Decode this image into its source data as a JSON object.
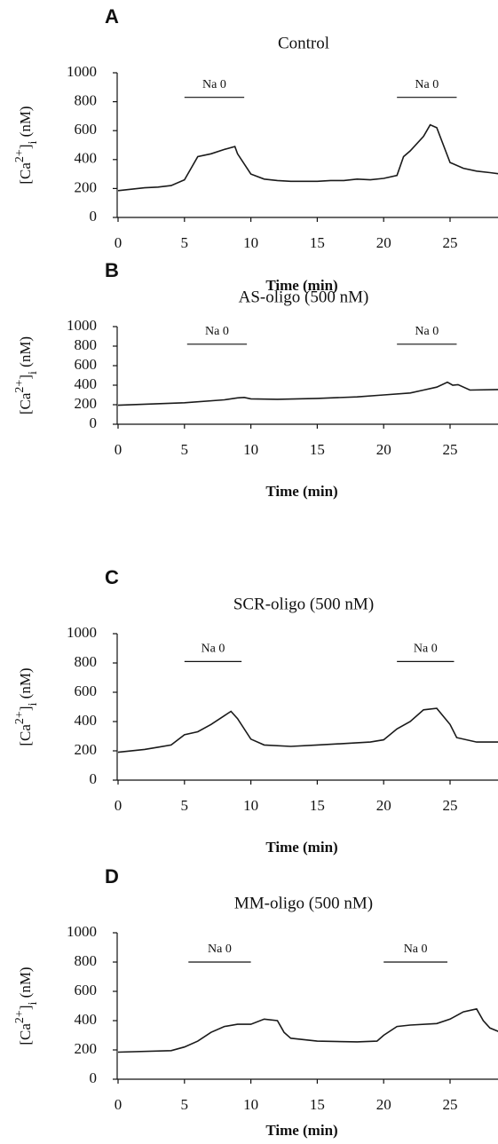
{
  "chart_data": [
    {
      "type": "line",
      "panel": "A",
      "title": "Control",
      "xlabel": "Time (min)",
      "ylabel": [
        "[Ca",
        "2+",
        "]",
        "i",
        " (nM)"
      ],
      "xlim": [
        0,
        28.8
      ],
      "xticks": [
        0,
        5,
        10,
        15,
        20,
        25
      ],
      "ylim": [
        0,
        1000
      ],
      "yticks": [
        0,
        200,
        400,
        600,
        800,
        1000
      ],
      "annotations": [
        {
          "text": "Na 0",
          "x": [
            5,
            9.5
          ],
          "y": 830
        },
        {
          "text": "Na 0",
          "x": [
            21,
            25.5
          ],
          "y": 830
        }
      ],
      "series": [
        {
          "color": "#1a1a1a",
          "x": [
            0,
            1,
            2,
            3,
            4,
            5,
            6,
            7,
            8,
            8.8,
            9,
            10,
            11,
            12,
            13,
            14,
            15,
            16,
            17,
            18,
            19,
            20,
            21,
            21.5,
            22,
            23,
            23.5,
            24,
            25,
            26,
            27,
            28,
            28.8
          ],
          "values": [
            185,
            195,
            205,
            210,
            220,
            260,
            420,
            440,
            470,
            490,
            440,
            300,
            265,
            255,
            250,
            250,
            250,
            255,
            255,
            265,
            260,
            270,
            290,
            420,
            460,
            560,
            640,
            620,
            380,
            340,
            320,
            310,
            300
          ]
        }
      ]
    },
    {
      "type": "line",
      "panel": "B",
      "title": "AS-oligo (500 nM)",
      "xlabel": "Time (min)",
      "ylabel": [
        "[Ca",
        "2+",
        "]",
        "i",
        " (nM)"
      ],
      "xlim": [
        0,
        28.8
      ],
      "xticks": [
        0,
        5,
        10,
        15,
        20,
        25
      ],
      "ylim": [
        0,
        1000
      ],
      "yticks": [
        0,
        200,
        400,
        600,
        800,
        1000
      ],
      "annotations": [
        {
          "text": "Na 0",
          "x": [
            5.2,
            9.7
          ],
          "y": 820
        },
        {
          "text": "Na 0",
          "x": [
            21,
            25.5
          ],
          "y": 820
        }
      ],
      "series": [
        {
          "color": "#1a1a1a",
          "x": [
            0,
            5,
            8,
            9,
            9.5,
            10,
            12,
            15,
            18,
            20,
            22,
            23,
            24,
            24.8,
            25.2,
            25.6,
            26.5,
            28.8
          ],
          "values": [
            195,
            220,
            250,
            270,
            275,
            260,
            255,
            265,
            280,
            300,
            320,
            350,
            380,
            430,
            400,
            405,
            350,
            355
          ]
        }
      ]
    },
    {
      "type": "line",
      "panel": "C",
      "title": "SCR-oligo (500 nM)",
      "xlabel": "Time (min)",
      "ylabel": [
        "[Ca",
        "2+",
        "]",
        "i",
        " (nM)"
      ],
      "xlim": [
        0,
        28.8
      ],
      "xticks": [
        0,
        5,
        10,
        15,
        20,
        25
      ],
      "ylim": [
        0,
        1000
      ],
      "yticks": [
        0,
        200,
        400,
        600,
        800,
        1000
      ],
      "annotations": [
        {
          "text": "Na 0",
          "x": [
            5,
            9.3
          ],
          "y": 810
        },
        {
          "text": "Na 0",
          "x": [
            21,
            25.3
          ],
          "y": 810
        }
      ],
      "series": [
        {
          "color": "#1a1a1a",
          "x": [
            0,
            2,
            3,
            4,
            5,
            6,
            7,
            8,
            8.5,
            9,
            10,
            11,
            13,
            15,
            17,
            19,
            20,
            21,
            22,
            23,
            24,
            25,
            25.5,
            27,
            28.8
          ],
          "values": [
            190,
            210,
            225,
            240,
            310,
            330,
            380,
            440,
            470,
            420,
            280,
            240,
            230,
            240,
            250,
            260,
            275,
            350,
            400,
            480,
            490,
            380,
            290,
            260,
            260
          ]
        }
      ]
    },
    {
      "type": "line",
      "panel": "D",
      "title": "MM-oligo (500 nM)",
      "xlabel": "Time (min)",
      "ylabel": [
        "[Ca",
        "2+",
        "]",
        "i",
        " (nM)"
      ],
      "xlim": [
        0,
        28.8
      ],
      "xticks": [
        0,
        5,
        10,
        15,
        20,
        25
      ],
      "ylim": [
        0,
        1000
      ],
      "yticks": [
        0,
        200,
        400,
        600,
        800,
        1000
      ],
      "annotations": [
        {
          "text": "Na 0",
          "x": [
            5.3,
            10
          ],
          "y": 800
        },
        {
          "text": "Na 0",
          "x": [
            20,
            24.8
          ],
          "y": 800
        }
      ],
      "series": [
        {
          "color": "#1a1a1a",
          "x": [
            0,
            4,
            5,
            6,
            7,
            8,
            9,
            10,
            11,
            12,
            12.5,
            13,
            15,
            18,
            19.5,
            20,
            21,
            22,
            24,
            25,
            26,
            27,
            27.5,
            28,
            28.8
          ],
          "values": [
            185,
            195,
            220,
            260,
            320,
            360,
            375,
            375,
            410,
            400,
            320,
            280,
            260,
            255,
            260,
            300,
            360,
            370,
            380,
            410,
            460,
            480,
            400,
            350,
            320
          ]
        }
      ]
    }
  ]
}
